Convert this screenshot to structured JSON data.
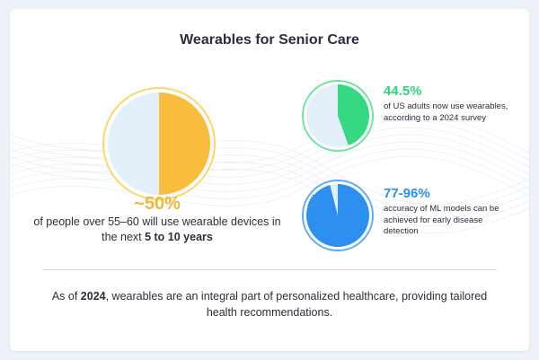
{
  "title": "Wearables for Senior Care",
  "main_stat": {
    "value": "~50%",
    "fraction": 0.5,
    "desc_before": "of people over 55–60 will use wearable devices in the next ",
    "desc_bold": "5 to 10 years",
    "color": "#f5b43a"
  },
  "stat_green": {
    "value": "44.5%",
    "fraction": 0.445,
    "desc": "of US adults now use wearables, according to a 2024 survey",
    "color": "#2ed47a"
  },
  "stat_blue": {
    "value": "77-96%",
    "fraction": 0.96,
    "desc": "accuracy of ML models can be achieved for early disease detection",
    "color": "#2a8ff2"
  },
  "footer": {
    "before": "As of ",
    "bold": "2024",
    "after": ", wearables are an integral part of personalized healthcare, providing tailored health recommendations."
  }
}
